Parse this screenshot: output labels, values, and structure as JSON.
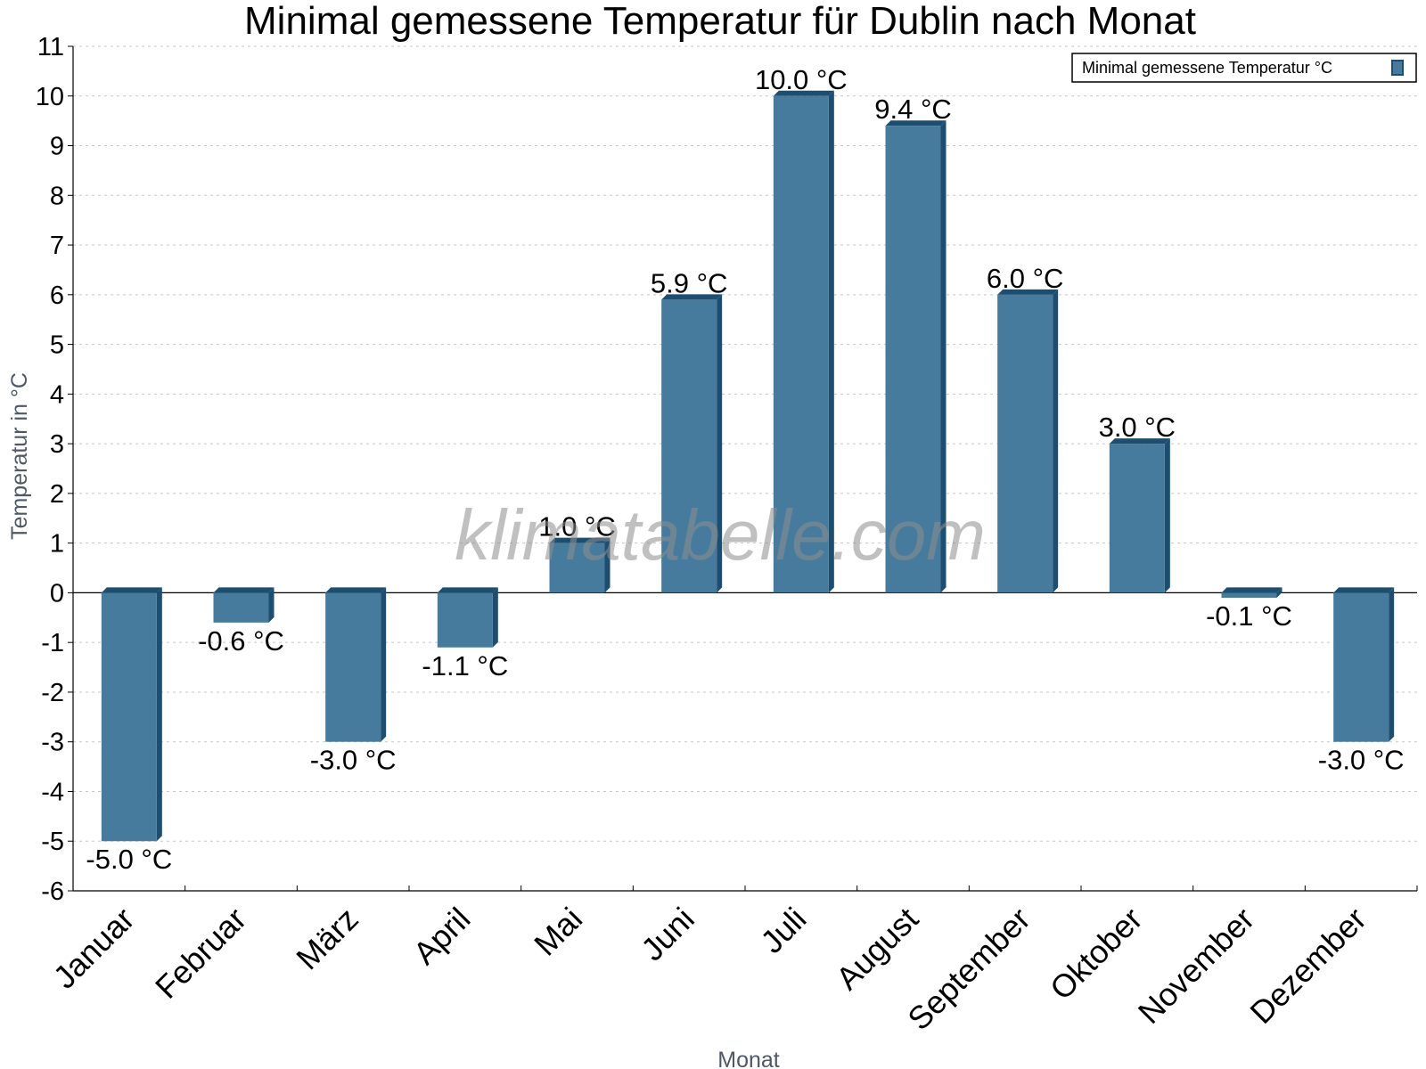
{
  "watermark": "klimatabelle.com",
  "colors": {
    "bar_front": "#467b9d",
    "bar_side": "#1d4e6f",
    "bar_top": "#1d4e6f",
    "grid": "#c7c7c7",
    "axis": "#000000",
    "legend_border": "#000000"
  },
  "chart_data": {
    "type": "bar",
    "title": "Minimal gemessene Temperatur für Dublin nach Monat",
    "xlabel": "Monat",
    "ylabel": "Temperatur in °C",
    "categories": [
      "Januar",
      "Februar",
      "März",
      "April",
      "Mai",
      "Juni",
      "Juli",
      "August",
      "September",
      "Oktober",
      "November",
      "Dezember"
    ],
    "series": [
      {
        "name": "Minimal gemessene Temperatur °C",
        "values": [
          -5.0,
          -0.6,
          -3.0,
          -1.1,
          1.0,
          5.9,
          10.0,
          9.4,
          6.0,
          3.0,
          -0.1,
          -3.0
        ],
        "labels": [
          "-5.0 °C",
          "-0.6 °C",
          "-3.0 °C",
          "-1.1 °C",
          "1.0 °C",
          "5.9 °C",
          "10.0 °C",
          "9.4 °C",
          "6.0 °C",
          "3.0 °C",
          "-0.1 °C",
          "-3.0 °C"
        ]
      }
    ],
    "ylim": [
      -6,
      11
    ],
    "yticks": [
      -6,
      -5,
      -4,
      -3,
      -2,
      -1,
      0,
      1,
      2,
      3,
      4,
      5,
      6,
      7,
      8,
      9,
      10,
      11
    ],
    "grid": true,
    "legend_position": "top-right"
  }
}
